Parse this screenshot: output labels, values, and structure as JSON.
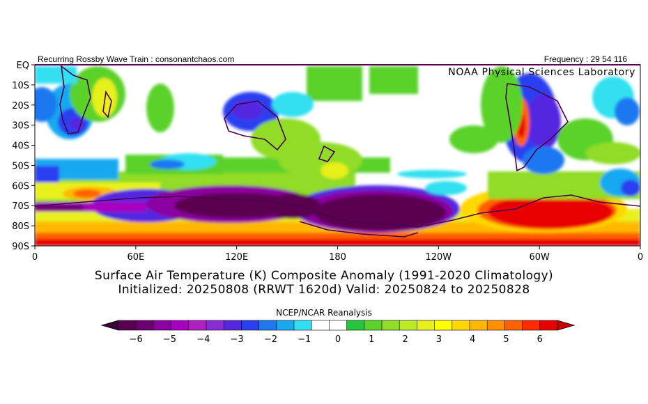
{
  "header": {
    "left_text": "Recurring Rossby Wave Train : consonantchaos.com",
    "right_text": "Frequency : 29 54 116",
    "lab_text": "NOAA Physical Sciences Laboratory"
  },
  "map": {
    "y_ticks": [
      "EQ",
      "10S",
      "20S",
      "30S",
      "40S",
      "50S",
      "60S",
      "70S",
      "80S",
      "90S"
    ],
    "x_ticks": [
      "0",
      "60E",
      "120E",
      "180",
      "120W",
      "60W",
      "0"
    ],
    "lat_range": [
      -90,
      0
    ],
    "lon_range": [
      0,
      360
    ]
  },
  "title": {
    "line1": "Surface Air Temperature (K) Composite Anomaly (1991-2020 Climatology)",
    "line2": "Initialized: 20250808 (RRWT 1620d) Valid: 20250824 to 20250828"
  },
  "source": "NCEP/NCAR Reanalysis",
  "colorbar": {
    "labels": [
      "-6",
      "-5",
      "-4",
      "-3",
      "-2",
      "-1",
      "0",
      "1",
      "2",
      "3",
      "4",
      "5",
      "6"
    ],
    "colors": [
      "#5a0050",
      "#6c0070",
      "#8b00a0",
      "#a800c0",
      "#b020c0",
      "#8a2cd6",
      "#5528e0",
      "#2a3ff0",
      "#1e78f0",
      "#18a8f0",
      "#30e0f0",
      "#ffffff",
      "#ffffff",
      "#24c63a",
      "#5ad22a",
      "#90dc28",
      "#bcea24",
      "#e8f01c",
      "#ffff00",
      "#ffd800",
      "#ffb800",
      "#ff9000",
      "#ff6000",
      "#ff2a00",
      "#e80000"
    ],
    "underflow_color": "#3a0038",
    "overflow_color": "#c80000"
  }
}
